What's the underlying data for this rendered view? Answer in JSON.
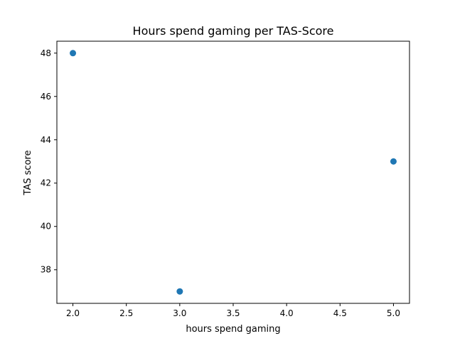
{
  "chart_data": {
    "type": "scatter",
    "title": "Hours spend gaming per TAS-Score",
    "xlabel": "hours spend gaming",
    "ylabel": "TAS score",
    "xlim": [
      1.85,
      5.15
    ],
    "ylim": [
      36.45,
      48.55
    ],
    "xticks": [
      2.0,
      2.5,
      3.0,
      3.5,
      4.0,
      4.5,
      5.0
    ],
    "xtick_labels": [
      "2.0",
      "2.5",
      "3.0",
      "3.5",
      "4.0",
      "4.5",
      "5.0"
    ],
    "yticks": [
      38,
      40,
      42,
      44,
      46,
      48
    ],
    "ytick_labels": [
      "38",
      "40",
      "42",
      "44",
      "46",
      "48"
    ],
    "grid": false,
    "marker_color": "#1f77b4",
    "points": [
      {
        "x": 2,
        "y": 48
      },
      {
        "x": 3,
        "y": 37
      },
      {
        "x": 5,
        "y": 43
      }
    ]
  }
}
